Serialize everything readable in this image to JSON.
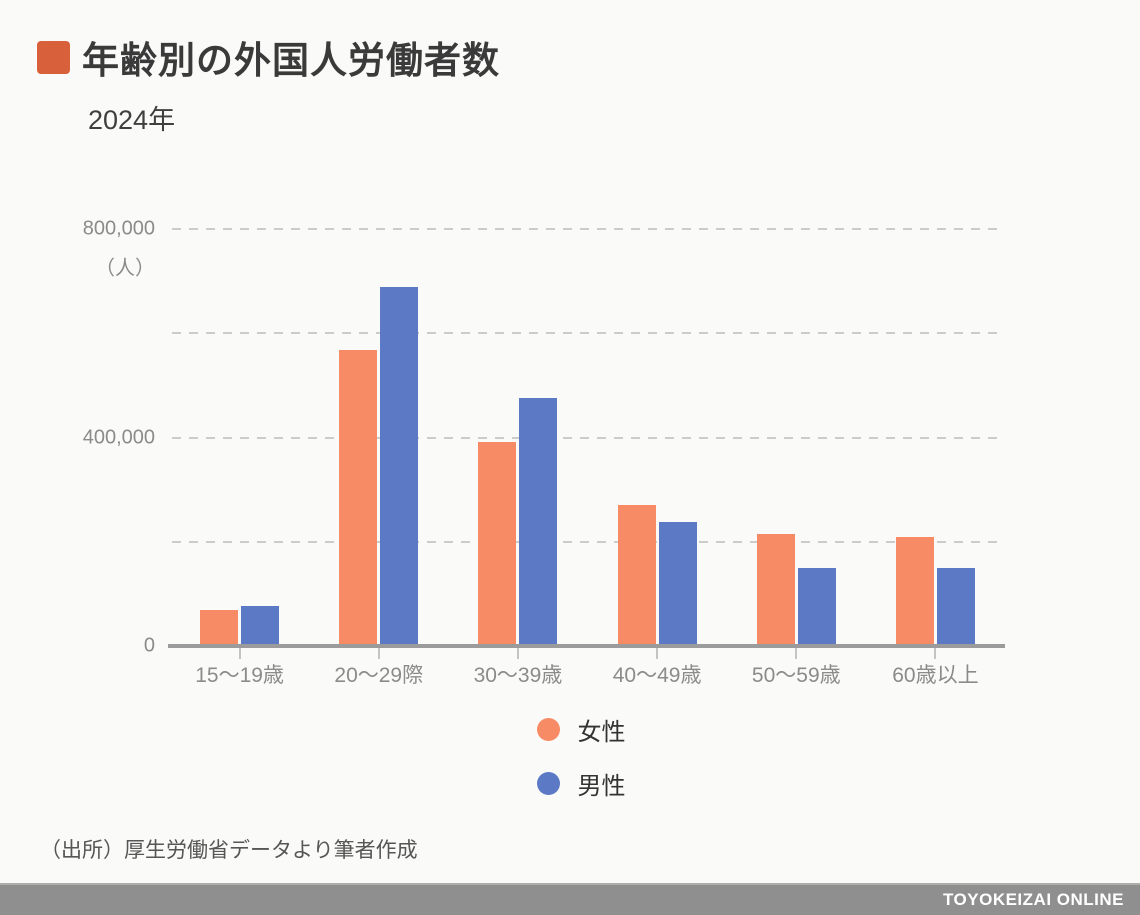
{
  "header": {
    "title": "年齢別の外国人労働者数",
    "subtitle": "2024年",
    "bullet_color": "#d8613c"
  },
  "chart_data": {
    "type": "bar",
    "categories": [
      "15〜19歳",
      "20〜29際",
      "30〜39歳",
      "40〜49歳",
      "50〜59歳",
      "60歳以上"
    ],
    "series": [
      {
        "key": "female",
        "name": "女性",
        "color": "#f78b65",
        "values": [
          70000,
          568000,
          392000,
          270000,
          214000,
          210000
        ]
      },
      {
        "key": "male",
        "name": "男性",
        "color": "#5b79c4",
        "values": [
          76000,
          688000,
          475000,
          237000,
          149000,
          149000
        ]
      }
    ],
    "title": "年齢別の外国人労働者数",
    "subtitle": "2024年",
    "xlabel": "",
    "ylabel_unit": "（人）",
    "ylim": [
      0,
      800000
    ],
    "grid": true,
    "legend_position": "bottom-center",
    "y_axis": {
      "max": 800000,
      "grid_values": [
        200000,
        400000,
        600000,
        800000
      ],
      "labeled_ticks": [
        {
          "value": 800000,
          "label": "800,000"
        },
        {
          "value": 400000,
          "label": "400,000"
        },
        {
          "value": 0,
          "label": "0"
        }
      ]
    }
  },
  "source": {
    "text": "（出所）厚生労働省データより筆者作成"
  },
  "footer": {
    "brand": "TOYOKEIZAI ONLINE",
    "bg": "#8f8f8f"
  }
}
